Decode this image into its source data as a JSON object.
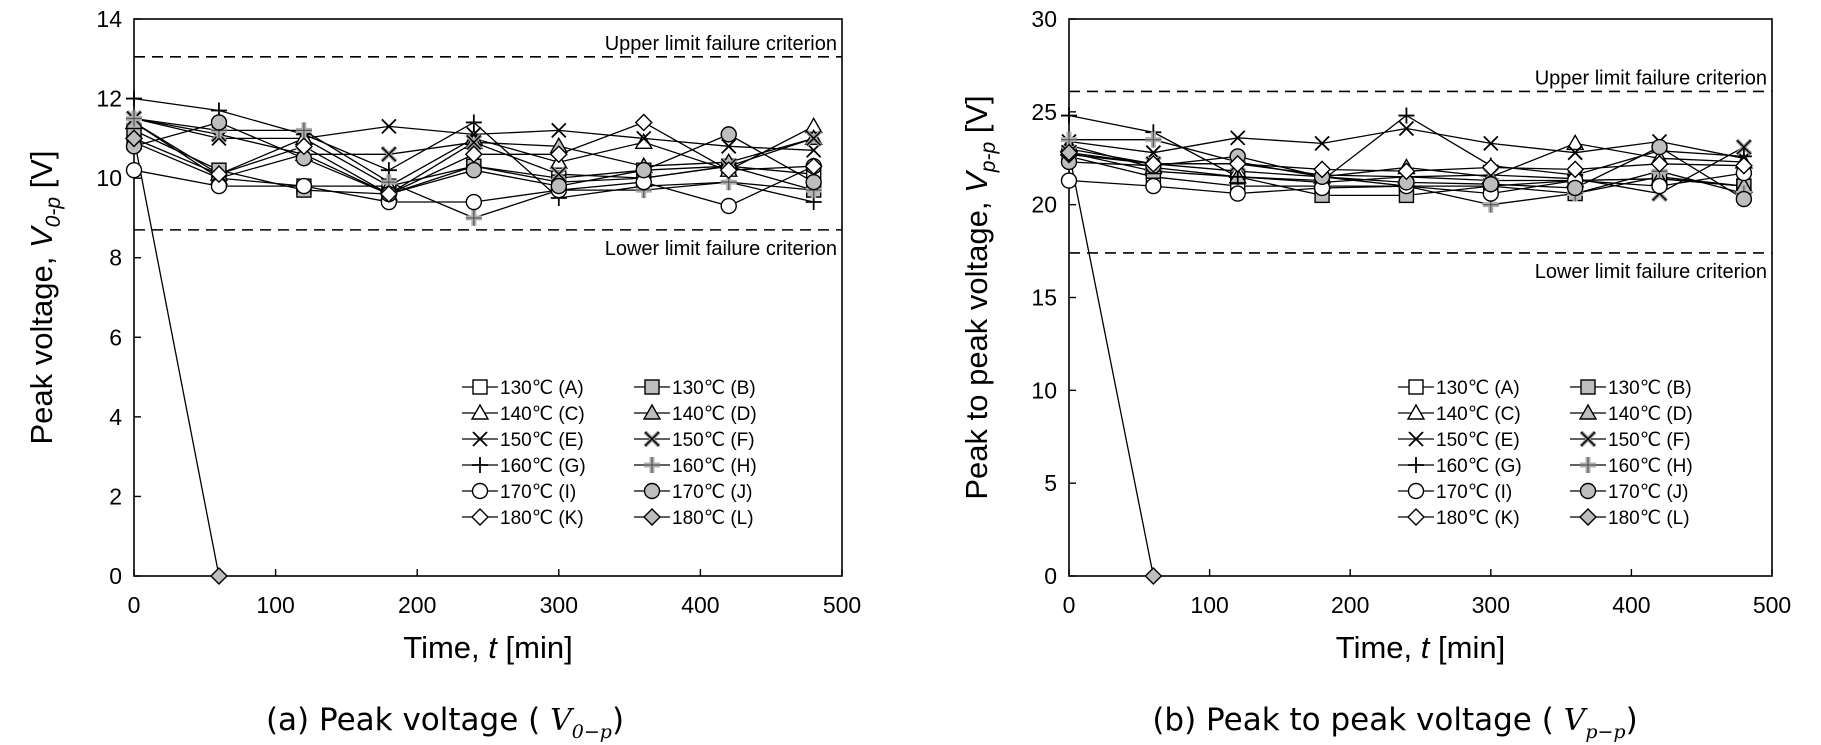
{
  "chart_data": [
    {
      "type": "line",
      "caption": "(a) Peak voltage (",
      "caption_symbol": "V",
      "caption_subscript": "0−p",
      "caption_close": ")",
      "xlabel_pre": "Time,",
      "xlabel_sym": "t",
      "xlabel_post": "[min]",
      "ylabel_pre": "Peak voltage,",
      "ylabel_sym": "V",
      "ylabel_sub": "0-p",
      "ylabel_post": "[V]",
      "xlim": [
        0,
        500
      ],
      "ylim": [
        0,
        14
      ],
      "xticks": [
        "0",
        "100",
        "200",
        "300",
        "400",
        "500"
      ],
      "yticks": [
        "0",
        "2",
        "4",
        "6",
        "8",
        "10",
        "12",
        "14"
      ],
      "criteria": [
        {
          "label": "Upper limit failure criterion",
          "value": 13.05
        },
        {
          "label": "Lower limit failure criterion",
          "value": 8.7
        }
      ],
      "x": [
        0,
        60,
        120,
        180,
        240,
        300,
        360,
        420,
        480
      ],
      "series": [
        {
          "name": "130℃ (A)",
          "marker": "square",
          "fill": "white",
          "values": [
            10.9,
            10.0,
            9.8,
            9.8,
            10.3,
            10.0,
            10.2,
            10.3,
            10.1
          ]
        },
        {
          "name": "130℃ (B)",
          "marker": "square",
          "fill": "gray",
          "values": [
            11.2,
            10.2,
            9.7,
            9.6,
            10.3,
            9.9,
            10.0,
            10.3,
            9.7
          ]
        },
        {
          "name": "140℃ (C)",
          "marker": "triangle",
          "fill": "white",
          "values": [
            11.4,
            10.1,
            11.0,
            9.8,
            11.0,
            10.4,
            10.9,
            10.2,
            11.3
          ]
        },
        {
          "name": "140℃ (D)",
          "marker": "triangle",
          "fill": "gray",
          "values": [
            11.4,
            10.0,
            10.6,
            9.6,
            10.9,
            10.8,
            10.3,
            10.4,
            11.0
          ]
        },
        {
          "name": "150℃ (E)",
          "marker": "x",
          "fill": "white",
          "values": [
            11.5,
            11.0,
            11.0,
            11.3,
            11.1,
            11.2,
            11.0,
            10.8,
            10.7
          ]
        },
        {
          "name": "150℃ (F)",
          "marker": "x",
          "fill": "gray",
          "values": [
            11.5,
            11.1,
            10.6,
            10.6,
            10.9,
            10.1,
            10.0,
            10.3,
            11.0
          ]
        },
        {
          "name": "160℃ (G)",
          "marker": "plus",
          "fill": "white",
          "values": [
            12.0,
            11.7,
            11.1,
            10.2,
            11.4,
            9.5,
            9.8,
            9.9,
            9.4
          ]
        },
        {
          "name": "160℃ (H)",
          "marker": "plus",
          "fill": "gray",
          "values": [
            11.5,
            11.2,
            11.2,
            9.9,
            9.0,
            9.7,
            9.7,
            9.9,
            9.7
          ]
        },
        {
          "name": "170℃ (I)",
          "marker": "circle",
          "fill": "white",
          "values": [
            10.2,
            9.8,
            9.8,
            9.4,
            9.4,
            9.7,
            9.9,
            9.3,
            10.3
          ]
        },
        {
          "name": "170℃ (J)",
          "marker": "circle",
          "fill": "gray",
          "values": [
            10.8,
            11.4,
            10.5,
            9.6,
            10.2,
            9.8,
            10.2,
            11.1,
            9.9
          ]
        },
        {
          "name": "180℃ (K)",
          "marker": "diamond",
          "fill": "white",
          "values": [
            11.0,
            10.1,
            10.8,
            9.6,
            10.6,
            10.6,
            11.4,
            10.2,
            10.3
          ]
        },
        {
          "name": "180℃ (L)",
          "marker": "diamond",
          "fill": "gray",
          "values": [
            11.0,
            0,
            null,
            null,
            null,
            null,
            null,
            null,
            null
          ]
        }
      ]
    },
    {
      "type": "line",
      "caption": "(b) Peak to peak voltage (",
      "caption_symbol": "V",
      "caption_subscript": "p−p",
      "caption_close": ")",
      "xlabel_pre": "Time,",
      "xlabel_sym": "t",
      "xlabel_post": "[min]",
      "ylabel_pre": "Peak to peak voltage,",
      "ylabel_sym": "V",
      "ylabel_sub": "p-p",
      "ylabel_post": "[V]",
      "xlim": [
        0,
        500
      ],
      "ylim": [
        0,
        30
      ],
      "xticks": [
        "0",
        "100",
        "200",
        "300",
        "400",
        "500"
      ],
      "yticks": [
        "0",
        "5",
        "10",
        "15",
        "20",
        "25",
        "30"
      ],
      "criteria": [
        {
          "label": "Upper limit failure criterion",
          "value": 26.1
        },
        {
          "label": "Lower limit failure criterion",
          "value": 17.4
        }
      ],
      "x": [
        0,
        60,
        120,
        180,
        240,
        300,
        360,
        420,
        480
      ],
      "series": [
        {
          "name": "130℃ (A)",
          "marker": "square",
          "fill": "white",
          "values": [
            22.6,
            21.5,
            21.0,
            21.0,
            21.0,
            21.0,
            21.3,
            21.4,
            21.0
          ]
        },
        {
          "name": "130℃ (B)",
          "marker": "square",
          "fill": "gray",
          "values": [
            22.8,
            21.8,
            21.5,
            20.5,
            20.5,
            21.0,
            20.6,
            21.5,
            21.0
          ]
        },
        {
          "name": "140℃ (C)",
          "marker": "triangle",
          "fill": "white",
          "values": [
            23.0,
            22.2,
            21.8,
            21.5,
            22.0,
            21.5,
            23.3,
            22.5,
            22.3
          ]
        },
        {
          "name": "140℃ (D)",
          "marker": "triangle",
          "fill": "gray",
          "values": [
            23.2,
            22.0,
            21.5,
            21.2,
            21.5,
            21.3,
            21.3,
            21.4,
            21.0
          ]
        },
        {
          "name": "150℃ (E)",
          "marker": "x",
          "fill": "white",
          "values": [
            23.4,
            22.8,
            23.6,
            23.3,
            24.1,
            23.3,
            22.8,
            23.4,
            22.5
          ]
        },
        {
          "name": "150℃ (F)",
          "marker": "x",
          "fill": "gray",
          "values": [
            22.8,
            22.2,
            22.2,
            21.6,
            21.5,
            21.6,
            21.4,
            20.6,
            23.1
          ]
        },
        {
          "name": "160℃ (G)",
          "marker": "plus",
          "fill": "white",
          "values": [
            24.8,
            23.9,
            21.5,
            21.3,
            24.8,
            22.1,
            21.6,
            22.9,
            22.6
          ]
        },
        {
          "name": "160℃ (H)",
          "marker": "plus",
          "fill": "gray",
          "values": [
            23.5,
            23.5,
            22.3,
            21.5,
            21.0,
            20.0,
            20.6,
            21.8,
            20.6
          ]
        },
        {
          "name": "170℃ (I)",
          "marker": "circle",
          "fill": "white",
          "values": [
            21.3,
            21.0,
            20.6,
            20.9,
            21.0,
            20.6,
            21.3,
            21.0,
            21.7
          ]
        },
        {
          "name": "170℃ (J)",
          "marker": "circle",
          "fill": "gray",
          "values": [
            22.3,
            22.1,
            22.6,
            21.5,
            21.2,
            21.1,
            20.9,
            23.1,
            20.3
          ]
        },
        {
          "name": "180℃ (K)",
          "marker": "diamond",
          "fill": "white",
          "values": [
            22.7,
            22.2,
            22.2,
            21.9,
            21.8,
            22.0,
            21.9,
            22.2,
            22.1
          ]
        },
        {
          "name": "180℃ (L)",
          "marker": "diamond",
          "fill": "gray",
          "values": [
            22.8,
            0,
            null,
            null,
            null,
            null,
            null,
            null,
            null
          ]
        }
      ]
    }
  ]
}
